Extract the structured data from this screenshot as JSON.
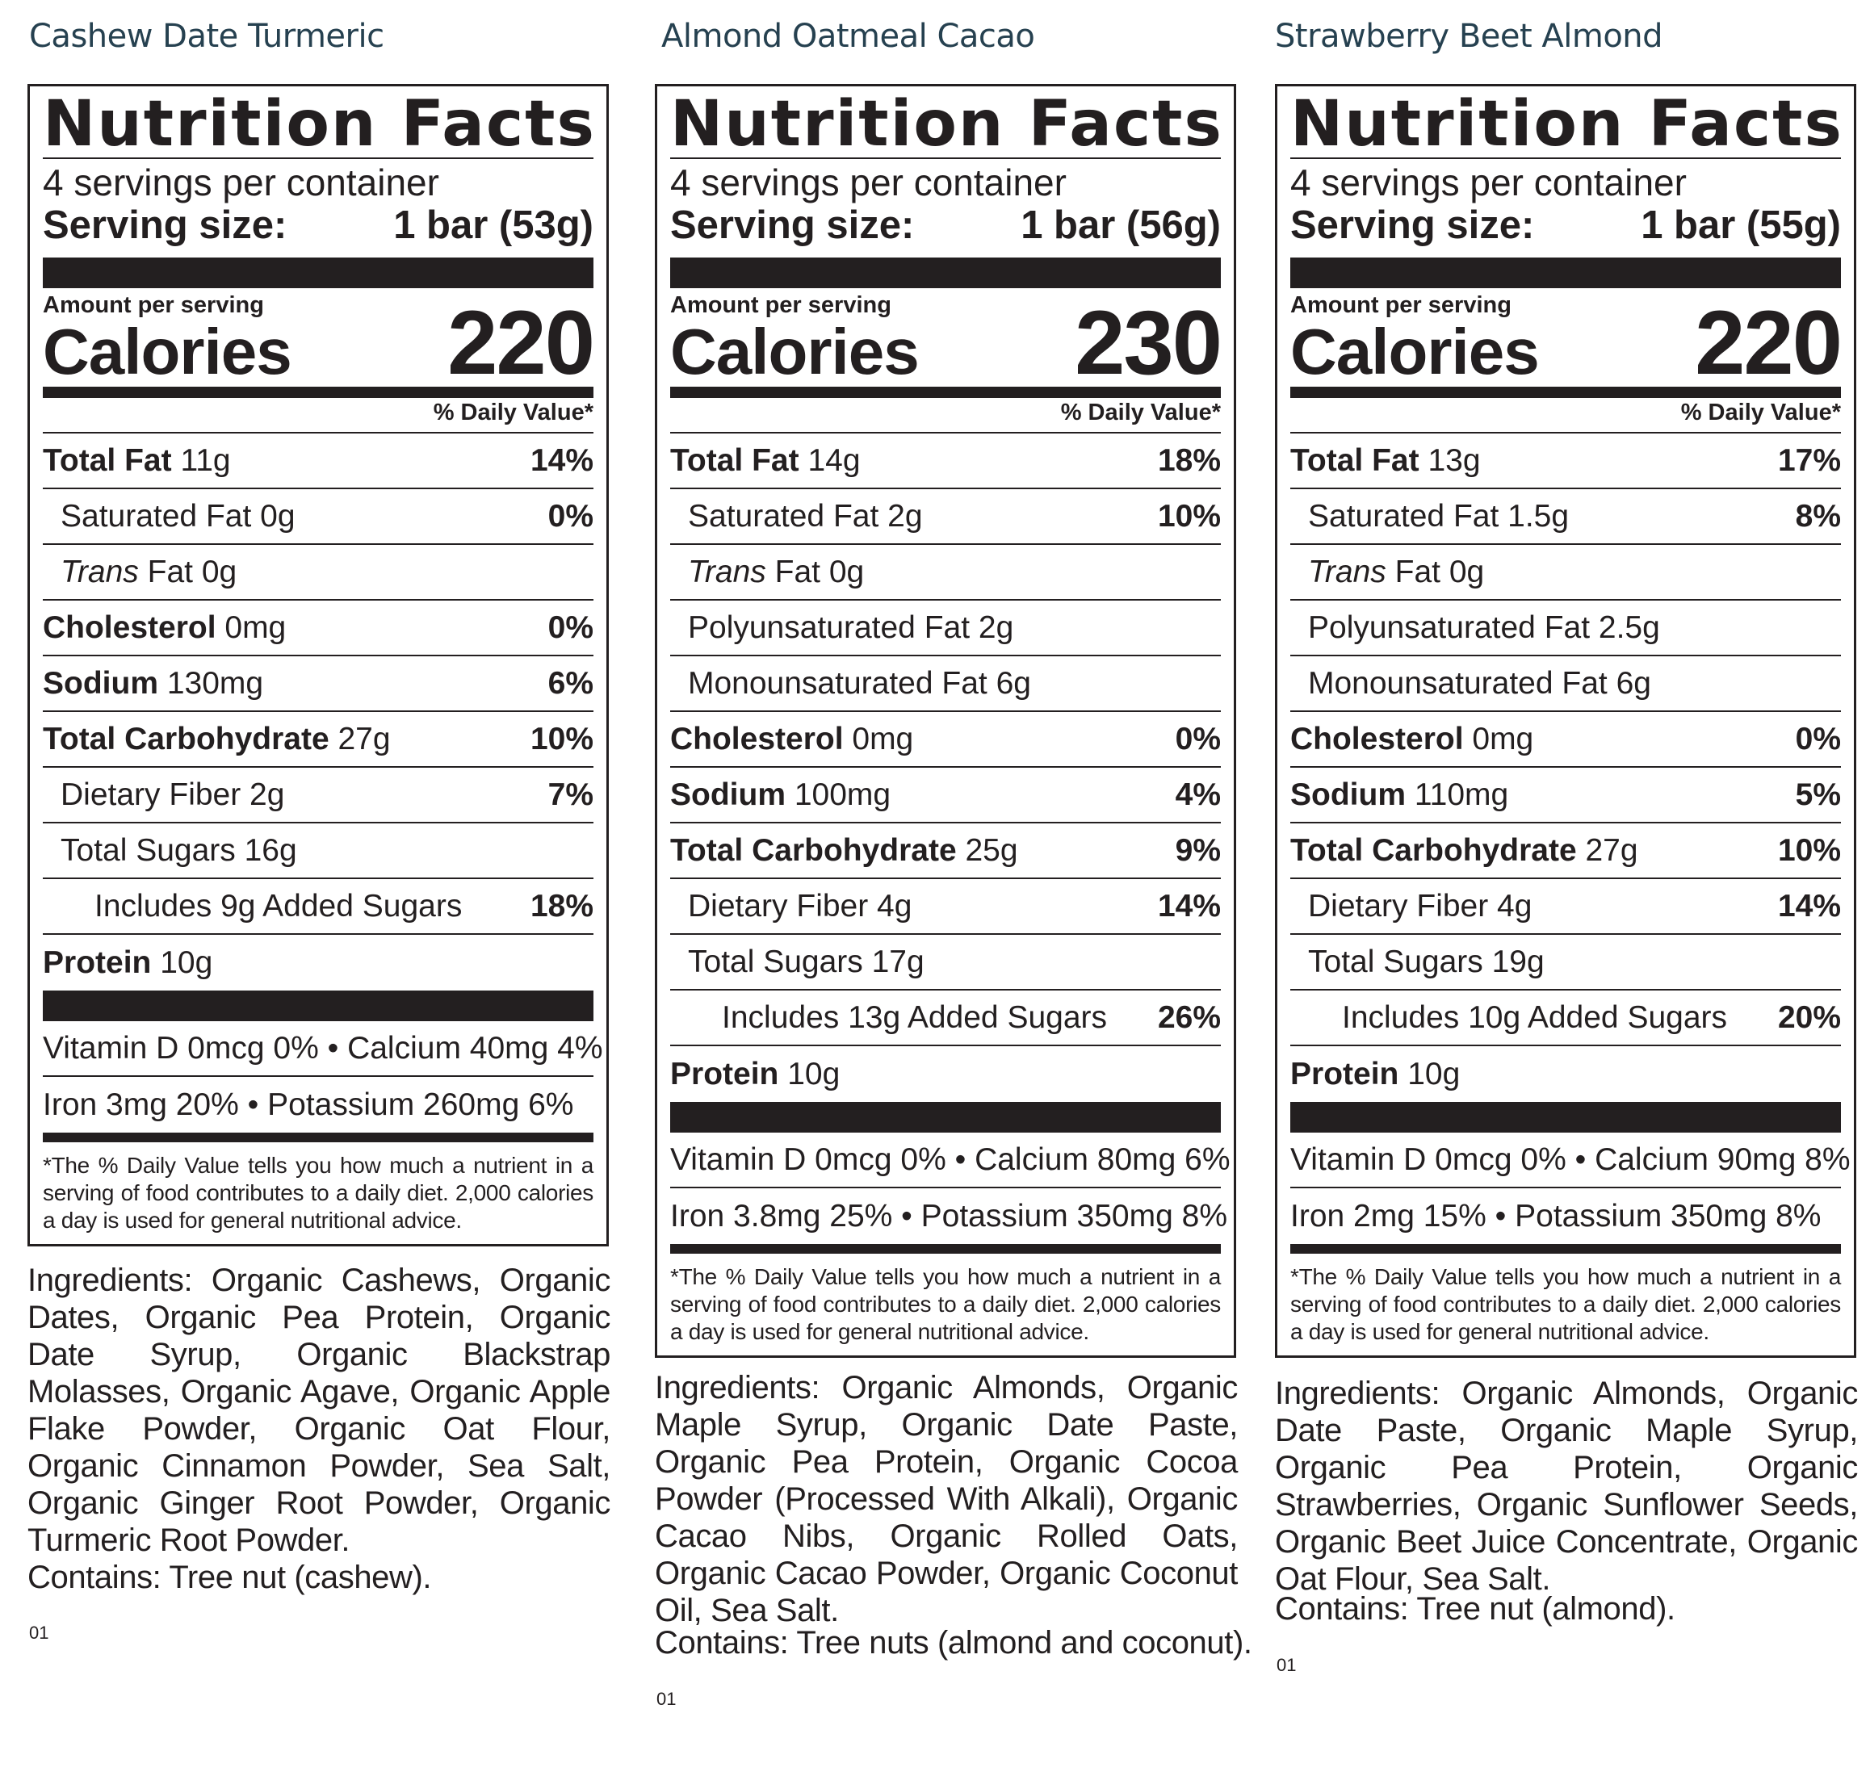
{
  "products": [
    {
      "title": "Cashew Date Turmeric",
      "label": {
        "heading": "Nutrition Facts",
        "servings": "4 servings per container",
        "serving_size_label": "Serving size:",
        "serving_size_value": "1 bar (53g)",
        "amount_per_serving": "Amount per serving",
        "calories_label": "Calories",
        "calories": "220",
        "dv_header": "% Daily Value*",
        "rows": [
          {
            "bold": "Total Fat",
            "italic": "",
            "rest": " 11g",
            "dv": "14%",
            "indent": 0
          },
          {
            "bold": "",
            "italic": "",
            "rest": "Saturated Fat 0g",
            "dv": "0%",
            "indent": 1
          },
          {
            "bold": "",
            "italic": "Trans",
            "rest": " Fat 0g",
            "dv": "",
            "indent": 1
          },
          {
            "bold": "Cholesterol",
            "italic": "",
            "rest": " 0mg",
            "dv": "0%",
            "indent": 0
          },
          {
            "bold": "Sodium",
            "italic": "",
            "rest": " 130mg",
            "dv": "6%",
            "indent": 0
          },
          {
            "bold": "Total Carbohydrate",
            "italic": "",
            "rest": " 27g",
            "dv": "10%",
            "indent": 0
          },
          {
            "bold": "",
            "italic": "",
            "rest": "Dietary Fiber 2g",
            "dv": "7%",
            "indent": 1
          },
          {
            "bold": "",
            "italic": "",
            "rest": "Total Sugars 16g",
            "dv": "",
            "indent": 1
          },
          {
            "bold": "",
            "italic": "",
            "rest": "Includes 9g Added Sugars",
            "dv": "18%",
            "indent": 2
          },
          {
            "bold": "Protein",
            "italic": "",
            "rest": " 10g",
            "dv": "",
            "indent": 0
          }
        ],
        "vitamins_1": "Vitamin D 0mcg 0% • Calcium 40mg 4%",
        "vitamins_2": "Iron 3mg 20% • Potassium 260mg 6%",
        "footnote": "*The % Daily Value tells you how much a nutrient in a serving of food contributes to a daily diet. 2,000 calories a day is used for general nutritional advice."
      },
      "ingredients": "Ingredients: Organic Cashews, Organic Dates, Organic Pea Protein, Organic Date Syrup, Organic Blackstrap Molasses, Organic Agave, Organic Apple Flake Powder, Organic Oat Flour, Organic Cinnamon Powder, Sea Salt, Organic Ginger Root Powder, Organic Turmeric Root Powder.",
      "contains": "Contains: Tree nut (cashew).",
      "code": "01"
    },
    {
      "title": "Almond Oatmeal Cacao",
      "label": {
        "heading": "Nutrition Facts",
        "servings": "4 servings per container",
        "serving_size_label": "Serving size:",
        "serving_size_value": "1 bar (56g)",
        "amount_per_serving": "Amount per serving",
        "calories_label": "Calories",
        "calories": "230",
        "dv_header": "% Daily Value*",
        "rows": [
          {
            "bold": "Total Fat",
            "italic": "",
            "rest": " 14g",
            "dv": "18%",
            "indent": 0
          },
          {
            "bold": "",
            "italic": "",
            "rest": "Saturated Fat 2g",
            "dv": "10%",
            "indent": 1
          },
          {
            "bold": "",
            "italic": "Trans",
            "rest": " Fat 0g",
            "dv": "",
            "indent": 1
          },
          {
            "bold": "",
            "italic": "",
            "rest": "Polyunsaturated Fat 2g",
            "dv": "",
            "indent": 1
          },
          {
            "bold": "",
            "italic": "",
            "rest": "Monounsaturated Fat 6g",
            "dv": "",
            "indent": 1
          },
          {
            "bold": "Cholesterol",
            "italic": "",
            "rest": " 0mg",
            "dv": "0%",
            "indent": 0
          },
          {
            "bold": "Sodium",
            "italic": "",
            "rest": " 100mg",
            "dv": "4%",
            "indent": 0
          },
          {
            "bold": "Total Carbohydrate",
            "italic": "",
            "rest": " 25g",
            "dv": "9%",
            "indent": 0
          },
          {
            "bold": "",
            "italic": "",
            "rest": "Dietary Fiber 4g",
            "dv": "14%",
            "indent": 1
          },
          {
            "bold": "",
            "italic": "",
            "rest": "Total Sugars 17g",
            "dv": "",
            "indent": 1
          },
          {
            "bold": "",
            "italic": "",
            "rest": "Includes 13g Added Sugars",
            "dv": "26%",
            "indent": 2
          },
          {
            "bold": "Protein",
            "italic": "",
            "rest": " 10g",
            "dv": "",
            "indent": 0
          }
        ],
        "vitamins_1": "Vitamin D 0mcg 0% • Calcium 80mg 6%",
        "vitamins_2": "Iron 3.8mg 25% • Potassium 350mg 8%",
        "footnote": "*The % Daily Value tells you how much a nutrient in a serving of food contributes to a daily diet. 2,000 calories a day is used for general nutritional advice."
      },
      "ingredients": "Ingredients: Organic Almonds, Organic Maple Syrup, Organic Date Paste, Organic Pea Protein, Organic Cocoa Powder (Processed With Alkali), Organic Cacao Nibs, Organic Rolled Oats, Organic Cacao Powder, Organic Coconut Oil, Sea Salt.",
      "contains": "Contains: Tree nuts (almond and coconut).",
      "code": "01"
    },
    {
      "title": "Strawberry Beet Almond",
      "label": {
        "heading": "Nutrition Facts",
        "servings": "4 servings per container",
        "serving_size_label": "Serving size:",
        "serving_size_value": "1 bar (55g)",
        "amount_per_serving": "Amount per serving",
        "calories_label": "Calories",
        "calories": "220",
        "dv_header": "% Daily Value*",
        "rows": [
          {
            "bold": "Total Fat",
            "italic": "",
            "rest": " 13g",
            "dv": "17%",
            "indent": 0
          },
          {
            "bold": "",
            "italic": "",
            "rest": "Saturated Fat 1.5g",
            "dv": "8%",
            "indent": 1
          },
          {
            "bold": "",
            "italic": "Trans",
            "rest": " Fat 0g",
            "dv": "",
            "indent": 1
          },
          {
            "bold": "",
            "italic": "",
            "rest": "Polyunsaturated Fat 2.5g",
            "dv": "",
            "indent": 1
          },
          {
            "bold": "",
            "italic": "",
            "rest": "Monounsaturated Fat 6g",
            "dv": "",
            "indent": 1
          },
          {
            "bold": "Cholesterol",
            "italic": "",
            "rest": " 0mg",
            "dv": "0%",
            "indent": 0
          },
          {
            "bold": "Sodium",
            "italic": "",
            "rest": " 110mg",
            "dv": "5%",
            "indent": 0
          },
          {
            "bold": "Total Carbohydrate",
            "italic": "",
            "rest": " 27g",
            "dv": "10%",
            "indent": 0
          },
          {
            "bold": "",
            "italic": "",
            "rest": "Dietary Fiber 4g",
            "dv": "14%",
            "indent": 1
          },
          {
            "bold": "",
            "italic": "",
            "rest": "Total Sugars 19g",
            "dv": "",
            "indent": 1
          },
          {
            "bold": "",
            "italic": "",
            "rest": "Includes 10g Added Sugars",
            "dv": "20%",
            "indent": 2
          },
          {
            "bold": "Protein",
            "italic": "",
            "rest": " 10g",
            "dv": "",
            "indent": 0
          }
        ],
        "vitamins_1": "Vitamin D 0mcg 0% • Calcium 90mg 8%",
        "vitamins_2": "Iron 2mg 15% • Potassium 350mg 8%",
        "footnote": "*The % Daily Value tells you how much a nutrient in a serving of food contributes to a daily diet. 2,000 calories a day is used for general nutritional advice."
      },
      "ingredients": "Ingredients: Organic Almonds, Organic Date Paste, Organic Maple Syrup, Organic Pea Protein, Organic Strawberries, Organic Sunflower Seeds, Organic Beet Juice Concentrate, Organic Oat Flour, Sea Salt.",
      "contains": "Contains: Tree nut (almond).",
      "code": "01"
    }
  ]
}
